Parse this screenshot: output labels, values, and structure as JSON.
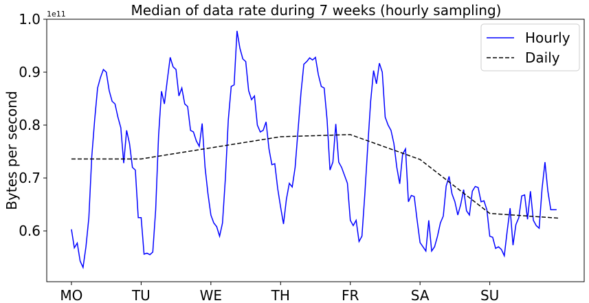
{
  "chart_data": {
    "type": "line",
    "title": "Median of data rate during 7 weeks (hourly sampling)",
    "y_label": "Bytes per second",
    "y_offset_label": "1e11",
    "xlim": [
      -8.5,
      176.5
    ],
    "ylim": [
      0.504,
      1.0
    ],
    "xticks": [
      {
        "value": 0,
        "label": "MO"
      },
      {
        "value": 24,
        "label": "TU"
      },
      {
        "value": 48,
        "label": "WE"
      },
      {
        "value": 72,
        "label": "TH"
      },
      {
        "value": 96,
        "label": "FR"
      },
      {
        "value": 120,
        "label": "SA"
      },
      {
        "value": 144,
        "label": "SU"
      }
    ],
    "yticks": [
      0.6,
      0.7,
      0.8,
      0.9,
      {
        "value": 1,
        "label": "1.0"
      }
    ],
    "grid": false,
    "legend": "upper right",
    "series": [
      {
        "name": "Hourly",
        "color": "#0000ff",
        "dash": "solid",
        "x": [
          0,
          1,
          2,
          3,
          4,
          5,
          6,
          7,
          8,
          9,
          10,
          11,
          12,
          13,
          14,
          15,
          16,
          17,
          18,
          19,
          20,
          21,
          22,
          23,
          24,
          25,
          26,
          27,
          28,
          29,
          30,
          31,
          32,
          33,
          34,
          35,
          36,
          37,
          38,
          39,
          40,
          41,
          42,
          43,
          44,
          45,
          46,
          47,
          48,
          49,
          50,
          51,
          52,
          53,
          54,
          55,
          56,
          57,
          58,
          59,
          60,
          61,
          62,
          63,
          64,
          65,
          66,
          67,
          68,
          69,
          70,
          71,
          72,
          73,
          74,
          75,
          76,
          77,
          78,
          79,
          80,
          81,
          82,
          83,
          84,
          85,
          86,
          87,
          88,
          89,
          90,
          91,
          92,
          93,
          94,
          95,
          96,
          97,
          98,
          99,
          100,
          101,
          102,
          103,
          104,
          105,
          106,
          107,
          108,
          109,
          110,
          111,
          112,
          113,
          114,
          115,
          116,
          117,
          118,
          119,
          120,
          121,
          122,
          123,
          124,
          125,
          126,
          127,
          128,
          129,
          130,
          131,
          132,
          133,
          134,
          135,
          136,
          137,
          138,
          139,
          140,
          141,
          142,
          143,
          144,
          145,
          146,
          147,
          148,
          149,
          150,
          151,
          152,
          153,
          154,
          155,
          156,
          157,
          158,
          159,
          160,
          161,
          162,
          163,
          164,
          165,
          166,
          167
        ],
        "values": [
          0.603,
          0.568,
          0.577,
          0.543,
          0.531,
          0.57,
          0.625,
          0.74,
          0.81,
          0.87,
          0.89,
          0.905,
          0.9,
          0.865,
          0.845,
          0.84,
          0.815,
          0.795,
          0.728,
          0.79,
          0.765,
          0.72,
          0.715,
          0.625,
          0.625,
          0.556,
          0.558,
          0.555,
          0.56,
          0.64,
          0.78,
          0.864,
          0.84,
          0.885,
          0.928,
          0.91,
          0.905,
          0.855,
          0.87,
          0.84,
          0.835,
          0.79,
          0.787,
          0.77,
          0.76,
          0.803,
          0.72,
          0.67,
          0.63,
          0.615,
          0.608,
          0.59,
          0.615,
          0.7,
          0.81,
          0.873,
          0.876,
          0.978,
          0.945,
          0.925,
          0.92,
          0.865,
          0.848,
          0.855,
          0.8,
          0.787,
          0.79,
          0.806,
          0.755,
          0.725,
          0.727,
          0.68,
          0.645,
          0.613,
          0.66,
          0.69,
          0.683,
          0.72,
          0.79,
          0.86,
          0.915,
          0.92,
          0.927,
          0.923,
          0.928,
          0.895,
          0.873,
          0.87,
          0.81,
          0.715,
          0.73,
          0.802,
          0.73,
          0.72,
          0.705,
          0.69,
          0.62,
          0.61,
          0.62,
          0.58,
          0.59,
          0.67,
          0.76,
          0.845,
          0.903,
          0.878,
          0.917,
          0.9,
          0.815,
          0.8,
          0.79,
          0.765,
          0.72,
          0.689,
          0.745,
          0.755,
          0.655,
          0.667,
          0.665,
          0.62,
          0.578,
          0.57,
          0.562,
          0.62,
          0.562,
          0.57,
          0.59,
          0.615,
          0.628,
          0.685,
          0.703,
          0.67,
          0.655,
          0.63,
          0.65,
          0.678,
          0.638,
          0.63,
          0.675,
          0.684,
          0.682,
          0.655,
          0.657,
          0.64,
          0.59,
          0.588,
          0.567,
          0.57,
          0.565,
          0.553,
          0.6,
          0.643,
          0.573,
          0.612,
          0.625,
          0.666,
          0.668,
          0.622,
          0.675,
          0.62,
          0.61,
          0.605,
          0.68,
          0.73,
          0.675,
          0.64,
          0.64,
          0.64
        ]
      },
      {
        "name": "Daily",
        "color": "#000000",
        "dash": "dashed",
        "x": [
          0,
          24,
          48,
          72,
          96,
          120,
          144,
          168
        ],
        "values": [
          0.736,
          0.736,
          0.757,
          0.778,
          0.782,
          0.735,
          0.633,
          0.624
        ]
      }
    ]
  }
}
